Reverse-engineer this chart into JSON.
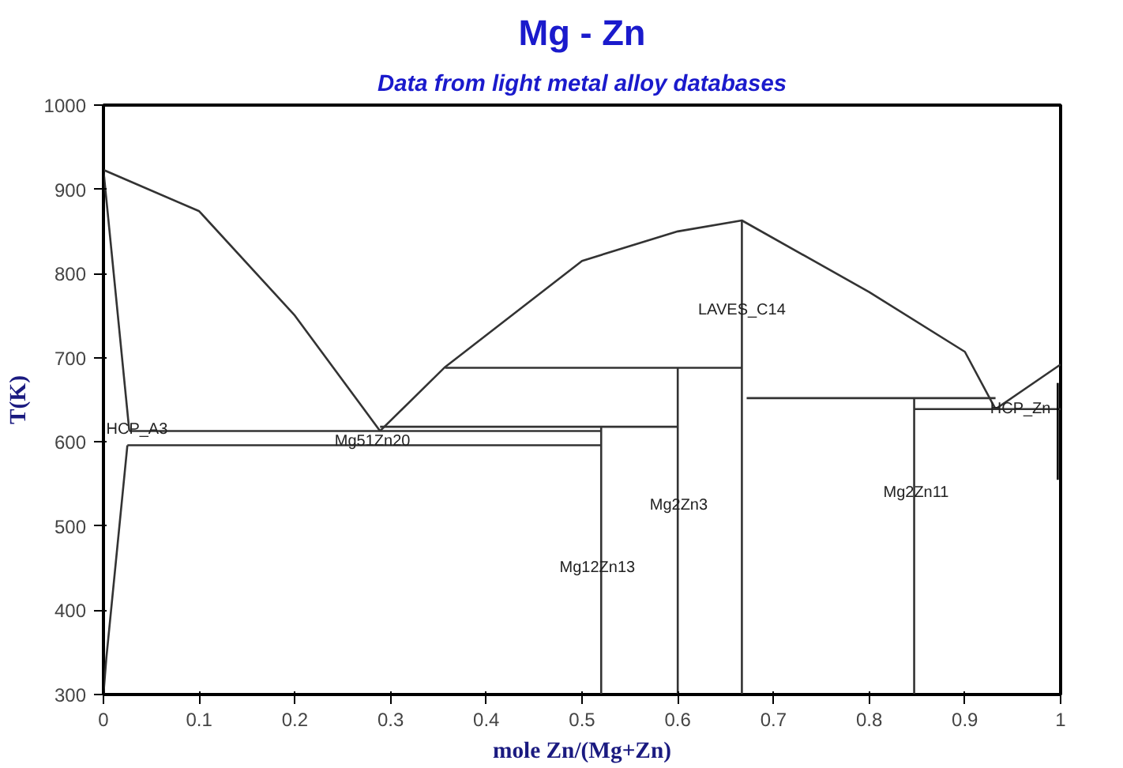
{
  "chart_data": {
    "type": "line",
    "title": "Mg - Zn",
    "subtitle": "Data from light metal alloy databases",
    "xlabel": "mole Zn/(Mg+Zn)",
    "ylabel": "T(K)",
    "xlim": [
      0,
      1
    ],
    "ylim": [
      300,
      1000
    ],
    "xticks": [
      0,
      0.1,
      0.2,
      0.3,
      0.4,
      0.5,
      0.6,
      0.7,
      0.8,
      0.9,
      1
    ],
    "yticks": [
      300,
      400,
      500,
      600,
      700,
      800,
      900,
      1000
    ],
    "marker": "none",
    "line_style": "solid",
    "series": [
      {
        "color": "#333333",
        "x": [
          0,
          0.1,
          0.2,
          0.289
        ],
        "values": [
          923,
          874,
          750,
          613
        ]
      },
      {
        "color": "#333333",
        "x": [
          0.289,
          0.357,
          0.5,
          0.6,
          0.667,
          0.8,
          0.9,
          0.932
        ],
        "values": [
          613,
          689,
          815,
          850,
          863,
          778,
          707,
          639
        ]
      },
      {
        "color": "#333333",
        "x": [
          0.932,
          1.0
        ],
        "values": [
          639,
          692
        ]
      },
      {
        "color": "#333333",
        "x": [
          0,
          0.027
        ],
        "values": [
          923,
          613
        ]
      },
      {
        "color": "#333333",
        "x": [
          0.025,
          0.003,
          0
        ],
        "values": [
          596,
          343,
          300
        ]
      },
      {
        "color": "#333333",
        "x": [
          0.027,
          0.52
        ],
        "values": [
          613,
          613
        ]
      },
      {
        "color": "#333333",
        "x": [
          0.025,
          0.52
        ],
        "values": [
          596,
          596
        ]
      },
      {
        "color": "#333333",
        "x": [
          0.289,
          0.6
        ],
        "values": [
          618,
          618
        ]
      },
      {
        "color": "#333333",
        "x": [
          0.52,
          0.52
        ],
        "values": [
          300,
          618
        ]
      },
      {
        "color": "#333333",
        "x": [
          0.357,
          0.667
        ],
        "values": [
          688,
          688
        ]
      },
      {
        "color": "#333333",
        "x": [
          0.6,
          0.6
        ],
        "values": [
          300,
          688
        ]
      },
      {
        "color": "#333333",
        "x": [
          0.667,
          0.667
        ],
        "values": [
          300,
          863
        ]
      },
      {
        "color": "#333333",
        "x": [
          0.672,
          0.932
        ],
        "values": [
          652,
          652
        ]
      },
      {
        "color": "#333333",
        "x": [
          0.847,
          0.847
        ],
        "values": [
          300,
          652
        ]
      },
      {
        "color": "#333333",
        "x": [
          0.847,
          1.0
        ],
        "values": [
          639,
          639
        ]
      },
      {
        "color": "#000000",
        "x": [
          0.997,
          0.997
        ],
        "values": [
          555,
          670
        ]
      }
    ],
    "annotations": [
      {
        "text": "HCP_A3",
        "x": 0.035,
        "y": 614
      },
      {
        "text": "Mg51Zn20",
        "x": 0.281,
        "y": 600
      },
      {
        "text": "LAVES_C14",
        "x": 0.667,
        "y": 756
      },
      {
        "text": "Mg2Zn3",
        "x": 0.601,
        "y": 524
      },
      {
        "text": "Mg12Zn13",
        "x": 0.516,
        "y": 450
      },
      {
        "text": "Mg2Zn11",
        "x": 0.849,
        "y": 539
      },
      {
        "text": "HCP_Zn",
        "x": 0.958,
        "y": 639
      }
    ]
  }
}
